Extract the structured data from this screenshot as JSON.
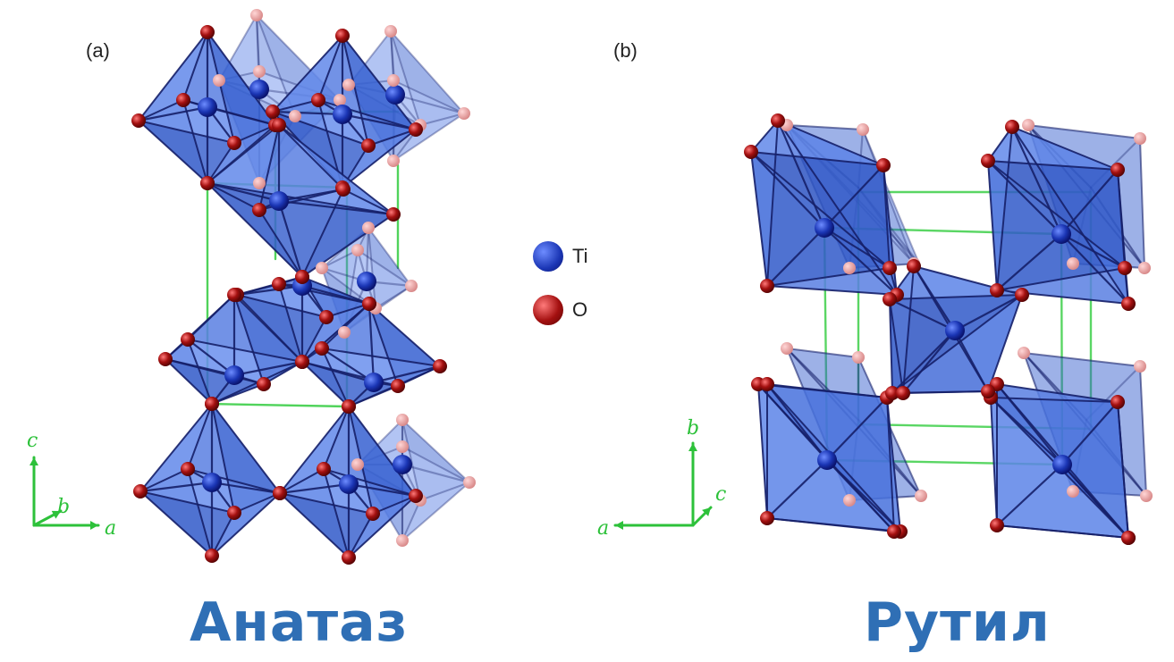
{
  "panels": {
    "a": {
      "label": "(a)",
      "title": "Анатаз",
      "axes": {
        "vertical": "c",
        "depth": "b",
        "horizontal": "a"
      }
    },
    "b": {
      "label": "(b)",
      "title": "Рутил",
      "axes": {
        "vertical": "b",
        "depth": "c",
        "horizontal": "a"
      }
    }
  },
  "legend": [
    {
      "label": "Ti",
      "color": "#0a1f8f"
    },
    {
      "label": "O",
      "color": "#a01010"
    }
  ],
  "colors": {
    "octahedron": "#3a66d6",
    "bond": "#16206a",
    "cell_edge": "#3ecf4a",
    "axis": "#2dc13a",
    "title": "#2f6fb5"
  },
  "icons": [
    "ti-atom-icon",
    "o-atom-icon",
    "axis-arrow-icon"
  ]
}
